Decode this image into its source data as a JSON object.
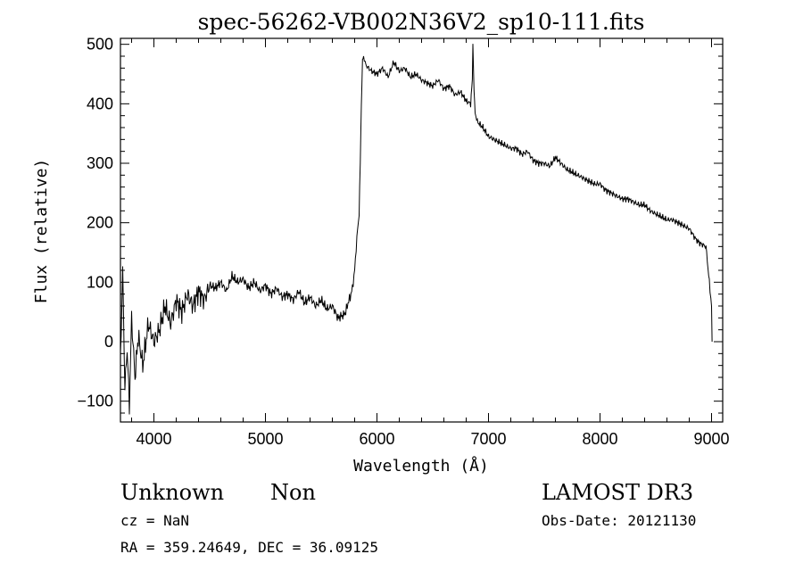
{
  "chart_data": {
    "type": "line",
    "title": "spec-56262-VB002N36V2_sp10-111.fits",
    "xlabel": "Wavelength (Å)",
    "ylabel": "Flux (relative)",
    "xlim": [
      3700,
      9100
    ],
    "ylim": [
      -135,
      510
    ],
    "x_ticks": [
      4000,
      5000,
      6000,
      7000,
      8000,
      9000
    ],
    "y_ticks": [
      -100,
      0,
      100,
      200,
      300,
      400,
      500
    ],
    "grid": false,
    "series": [
      {
        "color": "#000000",
        "x": [
          3700,
          3720,
          3740,
          3760,
          3780,
          3800,
          3830,
          3860,
          3900,
          3950,
          4000,
          4050,
          4100,
          4150,
          4200,
          4250,
          4300,
          4350,
          4400,
          4450,
          4500,
          4550,
          4600,
          4650,
          4700,
          4750,
          4800,
          4850,
          4900,
          4950,
          5000,
          5050,
          5100,
          5150,
          5200,
          5250,
          5300,
          5350,
          5400,
          5450,
          5500,
          5550,
          5600,
          5650,
          5700,
          5720,
          5740,
          5760,
          5780,
          5800,
          5820,
          5840,
          5850,
          5860,
          5870,
          5880,
          5900,
          5950,
          6000,
          6050,
          6100,
          6150,
          6200,
          6250,
          6300,
          6350,
          6400,
          6450,
          6500,
          6550,
          6600,
          6650,
          6700,
          6750,
          6800,
          6840,
          6855,
          6860,
          6865,
          6870,
          6880,
          6900,
          6950,
          7000,
          7050,
          7100,
          7150,
          7200,
          7250,
          7300,
          7350,
          7400,
          7450,
          7500,
          7550,
          7600,
          7650,
          7700,
          7750,
          7800,
          7850,
          7900,
          7950,
          8000,
          8050,
          8100,
          8150,
          8200,
          8250,
          8300,
          8350,
          8400,
          8450,
          8500,
          8550,
          8600,
          8650,
          8700,
          8750,
          8800,
          8850,
          8870,
          8900,
          8950,
          8980,
          9000,
          9005
        ],
        "y": [
          -30,
          120,
          -80,
          -10,
          -110,
          40,
          -60,
          10,
          -40,
          30,
          0,
          20,
          60,
          30,
          70,
          50,
          80,
          60,
          85,
          70,
          95,
          90,
          100,
          85,
          110,
          100,
          105,
          90,
          100,
          85,
          95,
          80,
          90,
          75,
          80,
          70,
          85,
          65,
          75,
          60,
          70,
          55,
          60,
          40,
          45,
          50,
          65,
          75,
          90,
          120,
          175,
          215,
          300,
          400,
          470,
          480,
          465,
          455,
          450,
          460,
          445,
          470,
          455,
          460,
          445,
          450,
          440,
          435,
          430,
          440,
          425,
          430,
          415,
          420,
          405,
          400,
          440,
          500,
          470,
          420,
          385,
          370,
          360,
          345,
          340,
          335,
          330,
          325,
          325,
          315,
          320,
          305,
          300,
          300,
          295,
          310,
          300,
          290,
          285,
          280,
          275,
          270,
          265,
          265,
          255,
          250,
          245,
          240,
          240,
          235,
          230,
          230,
          220,
          215,
          210,
          205,
          205,
          200,
          195,
          190,
          175,
          170,
          165,
          160,
          100,
          60,
          0
        ]
      }
    ]
  },
  "info": {
    "object_class": "Unknown",
    "object_subclass": "Non",
    "survey": "LAMOST DR3",
    "cz_line": "cz = NaN",
    "obs_date_line": "Obs-Date: 20121130",
    "coords_line": "RA = 359.24649, DEC =  36.09125"
  }
}
